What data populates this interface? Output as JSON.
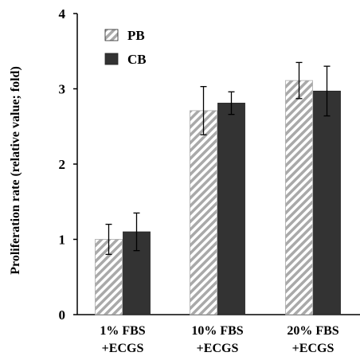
{
  "chart_data": {
    "type": "bar",
    "categories": [
      [
        "1% FBS",
        "+ECGS"
      ],
      [
        "10% FBS",
        "+ECGS"
      ],
      [
        "20% FBS",
        "+ECGS"
      ]
    ],
    "series": [
      {
        "name": "PB",
        "values": [
          1.0,
          2.71,
          3.11
        ],
        "errors": [
          0.2,
          0.32,
          0.24
        ],
        "pattern": "hatch",
        "color": "#a9a9a9"
      },
      {
        "name": "CB",
        "values": [
          1.1,
          2.81,
          2.97
        ],
        "errors": [
          0.25,
          0.15,
          0.33
        ],
        "pattern": "solid",
        "color": "#333333"
      }
    ],
    "ylabel": "Proliferation rate (relative value; fold)",
    "ylim": [
      0,
      4
    ],
    "yticks": [
      0,
      1,
      2,
      3,
      4
    ],
    "legend_position": "top-left",
    "grid": false
  }
}
